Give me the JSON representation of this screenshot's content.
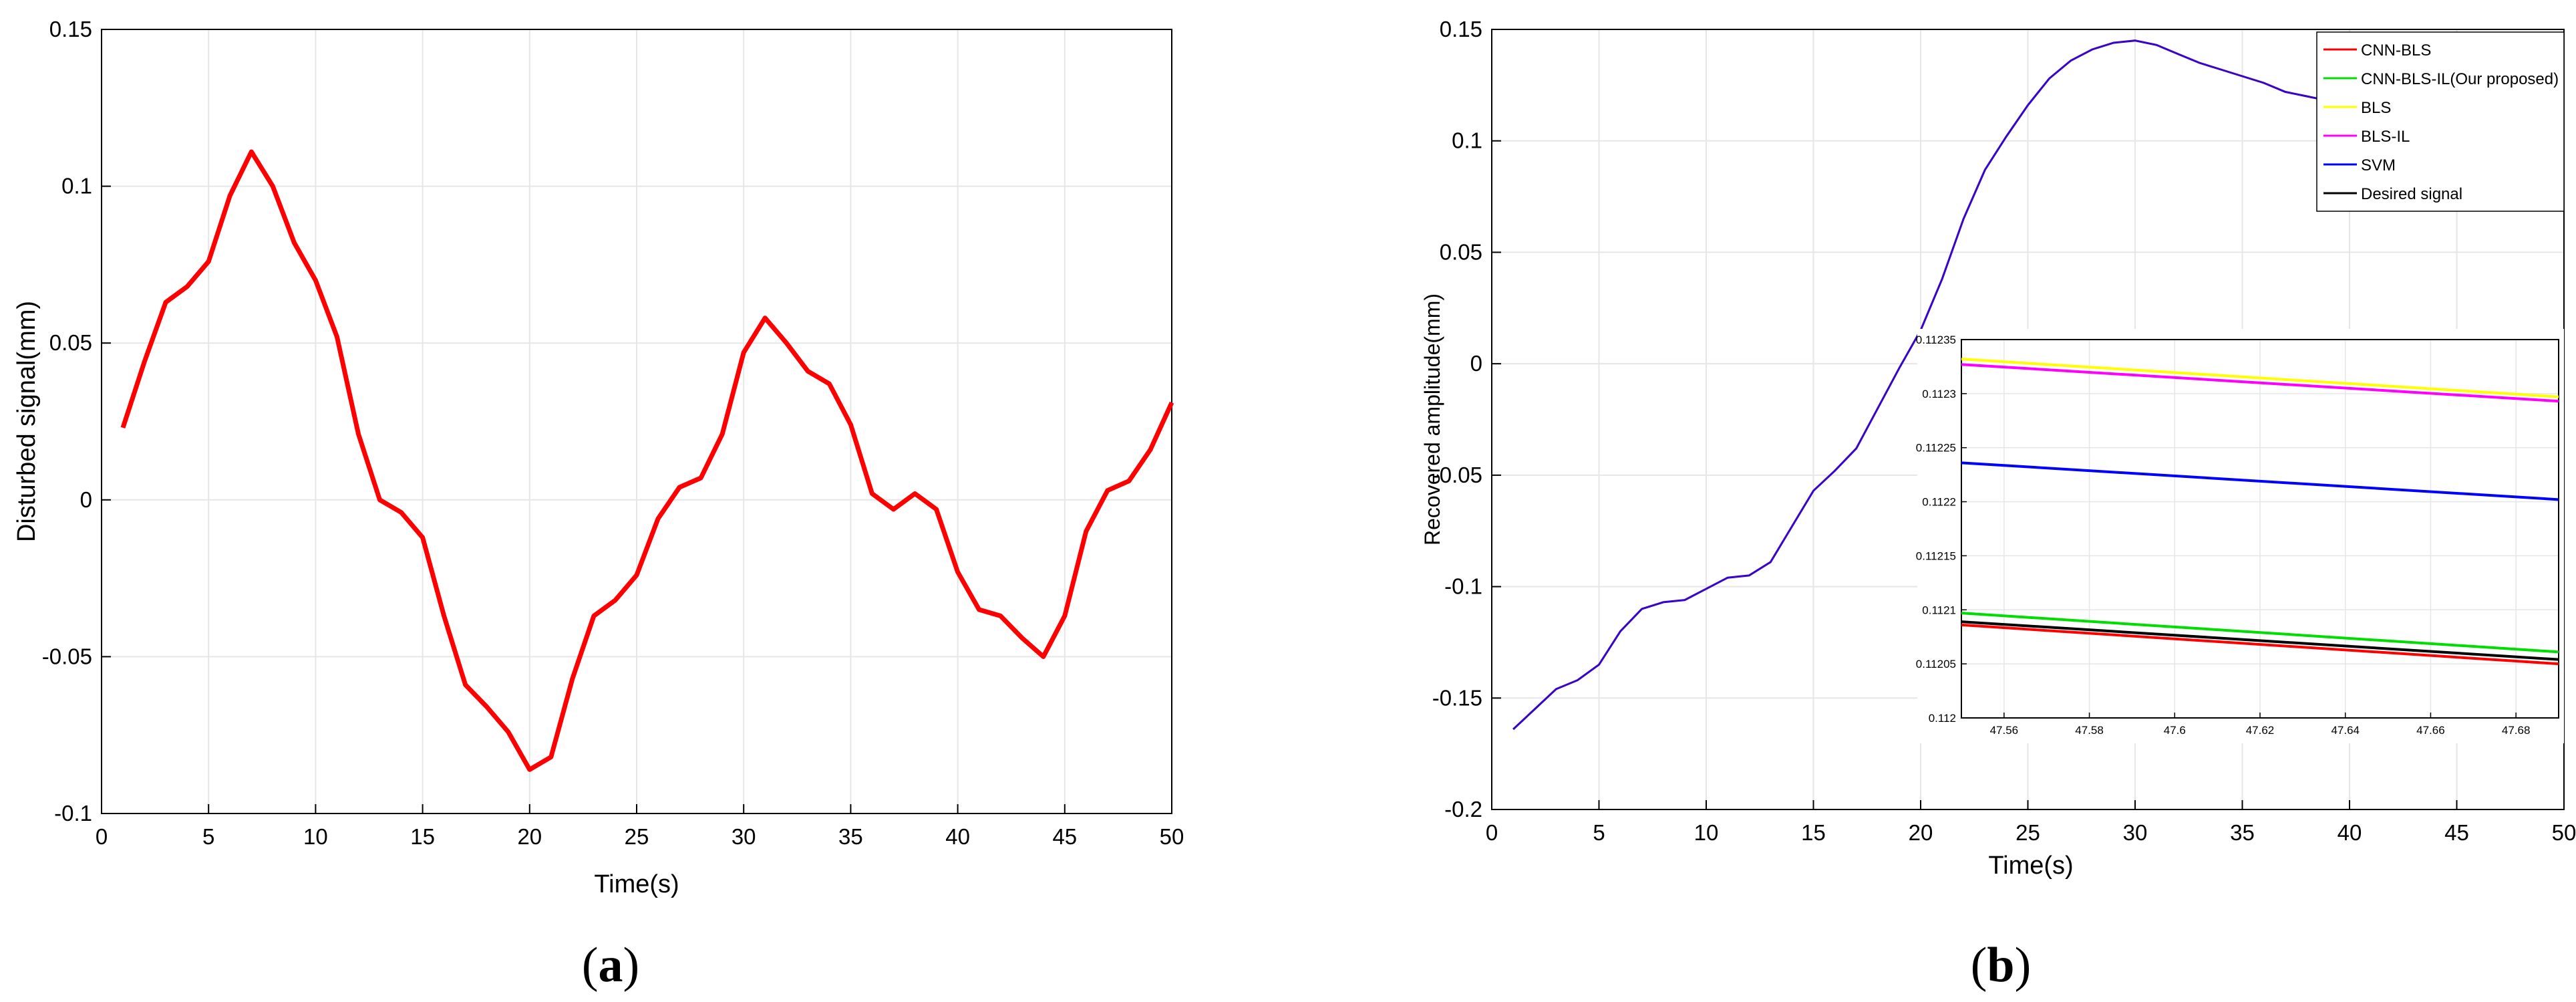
{
  "chart_data": [
    {
      "panel": "a",
      "type": "line",
      "caption_letter": "a",
      "caption_open": "(",
      "caption_close": ")",
      "xlabel": "Time(s)",
      "ylabel": "Disturbed signal(mm)",
      "xlim": [
        0,
        50
      ],
      "ylim": [
        -0.1,
        0.15
      ],
      "xticks": [
        0,
        5,
        10,
        15,
        20,
        25,
        30,
        35,
        40,
        45,
        50
      ],
      "yticks": [
        -0.1,
        -0.05,
        0,
        0.05,
        0.1,
        0.15
      ],
      "ytick_labels": [
        "-0.1",
        "-0.05",
        "0",
        "0.05",
        "0.1",
        "0.15"
      ],
      "grid": true,
      "color": "#ff0000",
      "x": [
        1,
        2,
        3,
        4,
        5,
        6,
        7,
        8,
        9,
        10,
        11,
        12,
        13,
        14,
        15,
        16,
        17,
        18,
        19,
        20,
        21,
        22,
        23,
        24,
        25,
        26,
        27,
        28,
        29,
        30,
        31,
        32,
        33,
        34,
        35,
        36,
        37,
        38,
        39,
        40,
        41,
        42,
        43,
        44,
        45,
        46,
        47,
        48,
        49,
        50
      ],
      "y": [
        0.023,
        0.044,
        0.063,
        0.068,
        0.076,
        0.097,
        0.111,
        0.1,
        0.082,
        0.07,
        0.052,
        0.021,
        0.0,
        -0.004,
        -0.012,
        -0.037,
        -0.059,
        -0.066,
        -0.074,
        -0.086,
        -0.082,
        -0.057,
        -0.037,
        -0.032,
        -0.024,
        -0.006,
        0.004,
        0.007,
        0.021,
        0.047,
        0.058,
        0.05,
        0.041,
        0.037,
        0.024,
        0.002,
        -0.003,
        0.002,
        -0.003,
        -0.023,
        -0.035,
        -0.037,
        -0.044,
        -0.05,
        -0.037,
        -0.01,
        0.003,
        0.006,
        0.016,
        0.031
      ]
    },
    {
      "panel": "b",
      "type": "line",
      "caption_letter": "b",
      "caption_open": "(",
      "caption_close": ")",
      "xlabel": "Time(s)",
      "ylabel": "Recovered amplitude(mm)",
      "xlim": [
        0,
        50
      ],
      "ylim": [
        -0.2,
        0.15
      ],
      "xticks": [
        0,
        5,
        10,
        15,
        20,
        25,
        30,
        35,
        40,
        45,
        50
      ],
      "yticks": [
        -0.2,
        -0.15,
        -0.1,
        -0.05,
        0,
        0.05,
        0.1,
        0.15
      ],
      "ytick_labels": [
        "-0.2",
        "-0.15",
        "-0.1",
        "-0.05",
        "0",
        "0.05",
        "0.1",
        "0.15"
      ],
      "grid": true,
      "legend_position": "top-right",
      "series": [
        {
          "name": "CNN-BLS",
          "color": "#ff0000"
        },
        {
          "name": "CNN-BLS-IL(Our proposed)",
          "color": "#00dd00"
        },
        {
          "name": "BLS",
          "color": "#ffff00"
        },
        {
          "name": "BLS-IL",
          "color": "#ff00ff"
        },
        {
          "name": "SVM",
          "color": "#0000ff"
        },
        {
          "name": "Desired signal",
          "color": "#000000"
        }
      ],
      "main_curve": {
        "x": [
          1,
          2,
          3,
          4,
          5,
          6,
          7,
          8,
          9,
          10,
          11,
          12,
          13,
          14,
          15,
          16,
          17,
          18,
          19,
          20,
          21,
          22,
          23,
          24,
          25,
          26,
          27,
          28,
          29,
          30,
          31,
          32,
          33,
          34,
          35,
          36,
          37,
          38,
          39,
          40,
          41,
          42,
          43,
          44,
          45,
          46,
          47,
          48,
          49,
          50
        ],
        "y": [
          -0.164,
          -0.155,
          -0.146,
          -0.142,
          -0.135,
          -0.12,
          -0.11,
          -0.107,
          -0.106,
          -0.101,
          -0.096,
          -0.095,
          -0.089,
          -0.073,
          -0.057,
          -0.048,
          -0.038,
          -0.02,
          -0.002,
          0.015,
          0.038,
          0.065,
          0.087,
          0.102,
          0.116,
          0.128,
          0.136,
          0.141,
          0.144,
          0.145,
          0.143,
          0.139,
          0.135,
          0.132,
          0.129,
          0.126,
          0.122,
          0.12,
          0.118,
          0.117,
          0.115,
          0.114,
          0.113,
          0.113,
          0.112,
          0.112,
          0.111,
          0.111,
          0.111,
          0.111
        ]
      },
      "inset": {
        "xlim": [
          47.55,
          47.69
        ],
        "ylim": [
          0.112,
          0.11235
        ],
        "xticks": [
          47.56,
          47.58,
          47.6,
          47.62,
          47.64,
          47.66,
          47.68
        ],
        "xtick_labels": [
          "47.56",
          "47.58",
          "47.6",
          "47.62",
          "47.64",
          "47.66",
          "47.68"
        ],
        "yticks": [
          0.112,
          0.11205,
          0.1121,
          0.11215,
          0.1122,
          0.11225,
          0.1123,
          0.11235
        ],
        "ytick_labels": [
          "0.112",
          "0.11205",
          "0.1121",
          "0.11215",
          "0.1122",
          "0.11225",
          "0.1123",
          "0.11235"
        ],
        "lines": [
          {
            "name": "BLS",
            "color": "#ffff00",
            "y": [
              0.112332,
              0.112297
            ]
          },
          {
            "name": "BLS-IL",
            "color": "#ff00ff",
            "y": [
              0.112327,
              0.112293
            ]
          },
          {
            "name": "SVM",
            "color": "#0000ff",
            "y": [
              0.112236,
              0.112202
            ]
          },
          {
            "name": "CNN-BLS-IL(Our proposed)",
            "color": "#00dd00",
            "y": [
              0.112097,
              0.112061
            ]
          },
          {
            "name": "Desired signal",
            "color": "#000000",
            "y": [
              0.112089,
              0.112054
            ]
          },
          {
            "name": "CNN-BLS",
            "color": "#ff0000",
            "y": [
              0.112086,
              0.11205
            ]
          }
        ]
      }
    }
  ]
}
